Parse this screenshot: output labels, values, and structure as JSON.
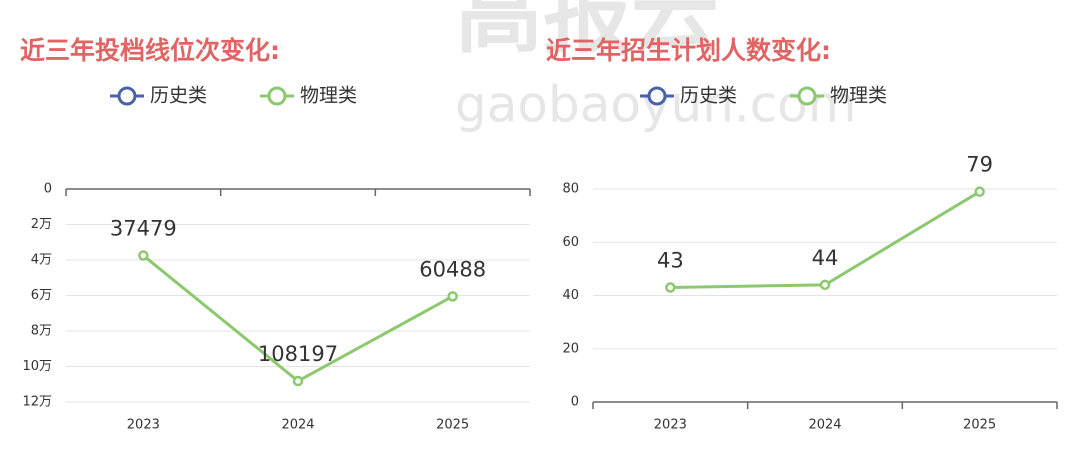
{
  "watermark": {
    "brand": "高报云",
    "domain": "gaobaoyun.com"
  },
  "chart_data": [
    {
      "type": "line",
      "title": "近三年投档线位次变化:",
      "categories": [
        "2023",
        "2024",
        "2025"
      ],
      "series": [
        {
          "name": "历史类",
          "color": "#4a62a8",
          "values": [
            null,
            null,
            null
          ]
        },
        {
          "name": "物理类",
          "color": "#8cc86e",
          "values": [
            37479,
            108197,
            60488
          ]
        }
      ],
      "ylim": [
        0,
        120000
      ],
      "y_inverted": true,
      "yticks": [
        0,
        {
          "value": 20000,
          "label": "2万"
        },
        {
          "value": 40000,
          "label": "4万"
        },
        {
          "value": 60000,
          "label": "6万"
        },
        {
          "value": 80000,
          "label": "8万"
        },
        {
          "value": 100000,
          "label": "10万"
        },
        {
          "value": 120000,
          "label": "12万"
        }
      ],
      "grid": true
    },
    {
      "type": "line",
      "title": "近三年招生计划人数变化:",
      "categories": [
        "2023",
        "2024",
        "2025"
      ],
      "series": [
        {
          "name": "历史类",
          "color": "#4a62a8",
          "values": [
            null,
            null,
            null
          ]
        },
        {
          "name": "物理类",
          "color": "#8cc86e",
          "values": [
            43,
            44,
            79
          ]
        }
      ],
      "ylim": [
        0,
        80
      ],
      "y_inverted": false,
      "yticks": [
        0,
        20,
        40,
        60,
        80
      ],
      "grid": true
    }
  ]
}
